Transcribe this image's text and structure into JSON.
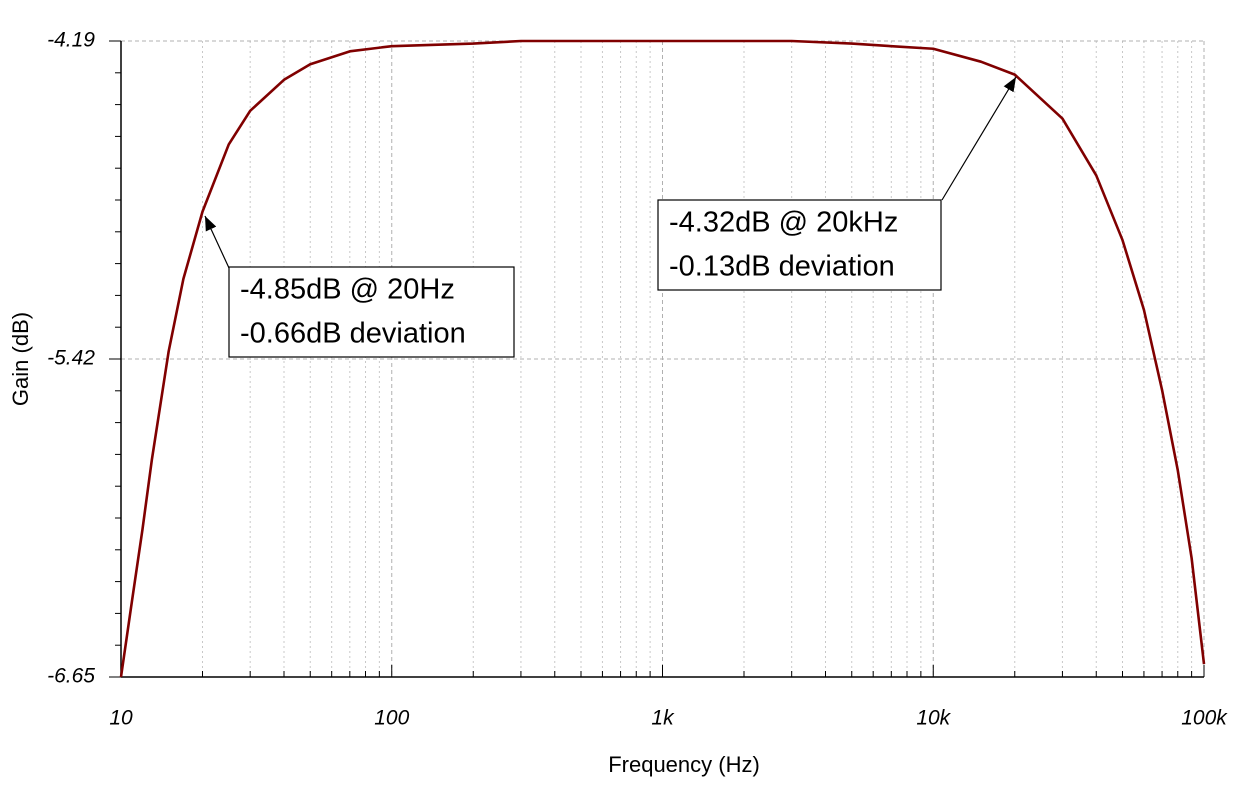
{
  "chart_data": {
    "type": "line",
    "x_label": "Frequency (Hz)",
    "y_label": "Gain (dB)",
    "xscale": "log",
    "grid": true,
    "x": [
      10,
      11,
      12,
      13,
      15,
      17,
      20,
      25,
      30,
      40,
      50,
      70,
      100,
      200,
      300,
      1000,
      3000,
      5000,
      7000,
      10000,
      15000,
      20000,
      30000,
      40000,
      50000,
      60000,
      70000,
      80000,
      90000,
      100000
    ],
    "series": [
      {
        "color": "#800000",
        "values": [
          -6.65,
          -6.35,
          -6.08,
          -5.81,
          -5.39,
          -5.11,
          -4.85,
          -4.59,
          -4.46,
          -4.34,
          -4.28,
          -4.23,
          -4.21,
          -4.2,
          -4.19,
          -4.19,
          -4.19,
          -4.2,
          -4.21,
          -4.22,
          -4.27,
          -4.32,
          -4.49,
          -4.71,
          -4.96,
          -5.23,
          -5.54,
          -5.85,
          -6.19,
          -6.6
        ]
      }
    ],
    "xlim": [
      10,
      100000
    ],
    "ylim": [
      -6.65,
      -4.19
    ],
    "xticks": [
      10,
      100,
      {
        "value": 1000,
        "label": "1k"
      },
      {
        "value": 10000,
        "label": "10k"
      },
      {
        "value": 100000,
        "label": "100k"
      }
    ],
    "yticks": [
      -6.65,
      -5.42,
      -4.19
    ],
    "annotations": [
      [
        "-4.85dB @ 20Hz",
        "-0.66dB deviation"
      ],
      [
        "-4.32dB @ 20kHz",
        "-0.13dB deviation"
      ]
    ]
  }
}
